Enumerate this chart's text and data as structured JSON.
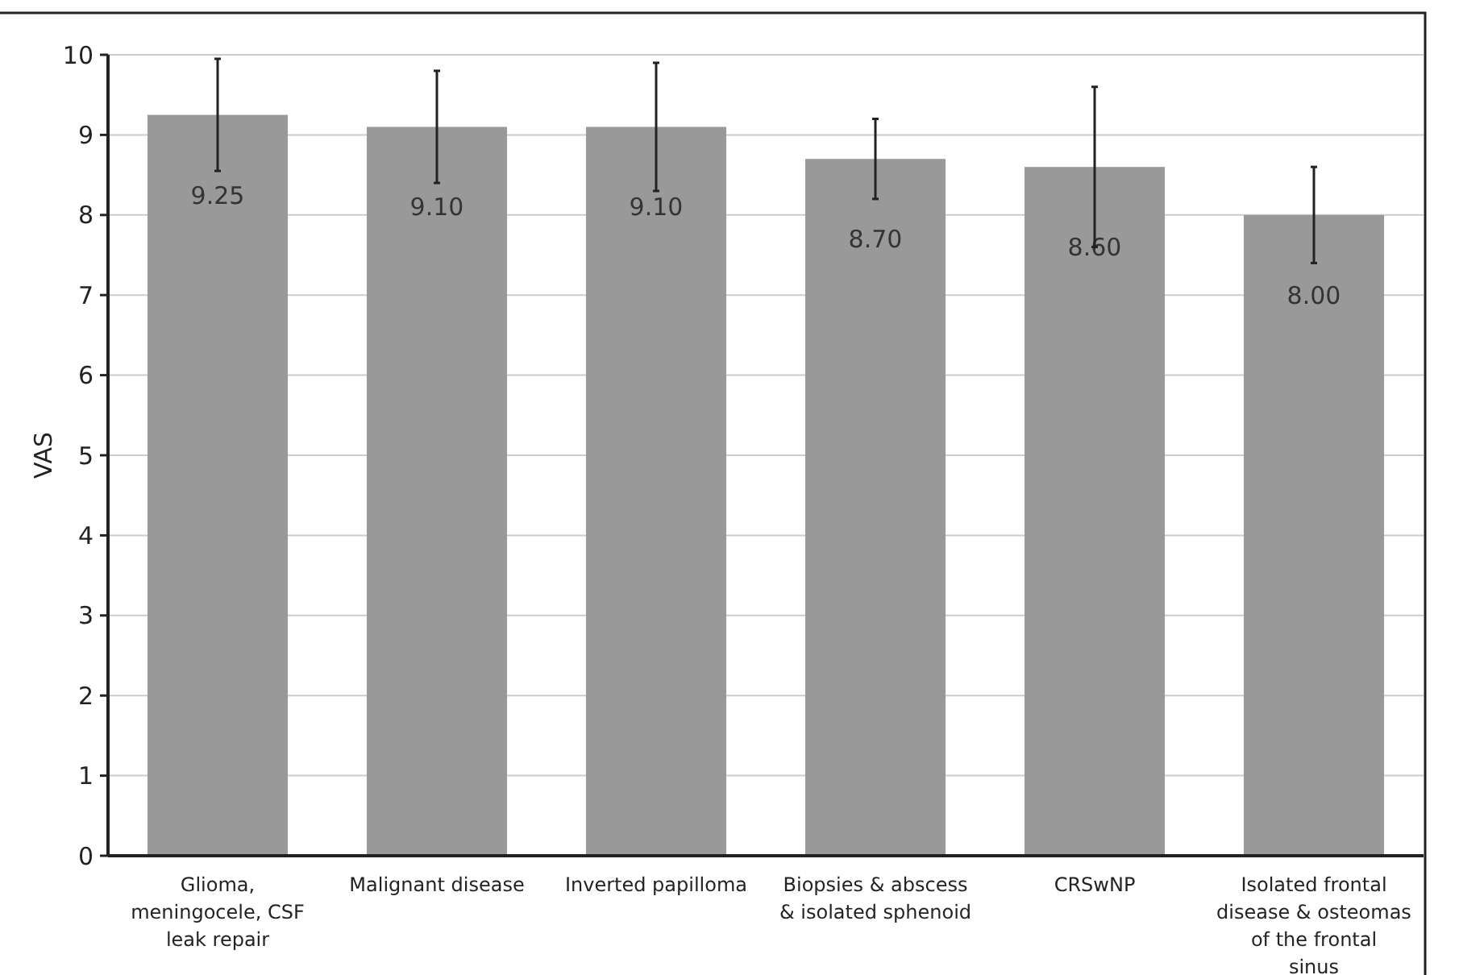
{
  "chart_data": {
    "type": "bar",
    "ylabel": "VAS",
    "categories": [
      "Glioma, meningocele, CSF leak repair",
      "Malignant disease",
      "Inverted papilloma",
      "Biopsies & abscess & isolated sphenoid",
      "CRSwNP",
      "Isolated frontal disease & osteomas of the frontal sinus"
    ],
    "values": [
      9.25,
      9.1,
      9.1,
      8.7,
      8.6,
      8.0
    ],
    "errors": [
      0.7,
      0.7,
      0.8,
      0.5,
      1.0,
      0.6
    ],
    "value_labels": [
      "9.25",
      "9.10",
      "9.10",
      "8.70",
      "8.60",
      "8.00"
    ],
    "color": "#999999",
    "ylim": [
      0,
      10
    ],
    "yticks": [
      0,
      1,
      2,
      3,
      4,
      5,
      6,
      7,
      8,
      9,
      10
    ],
    "grid": "y"
  }
}
